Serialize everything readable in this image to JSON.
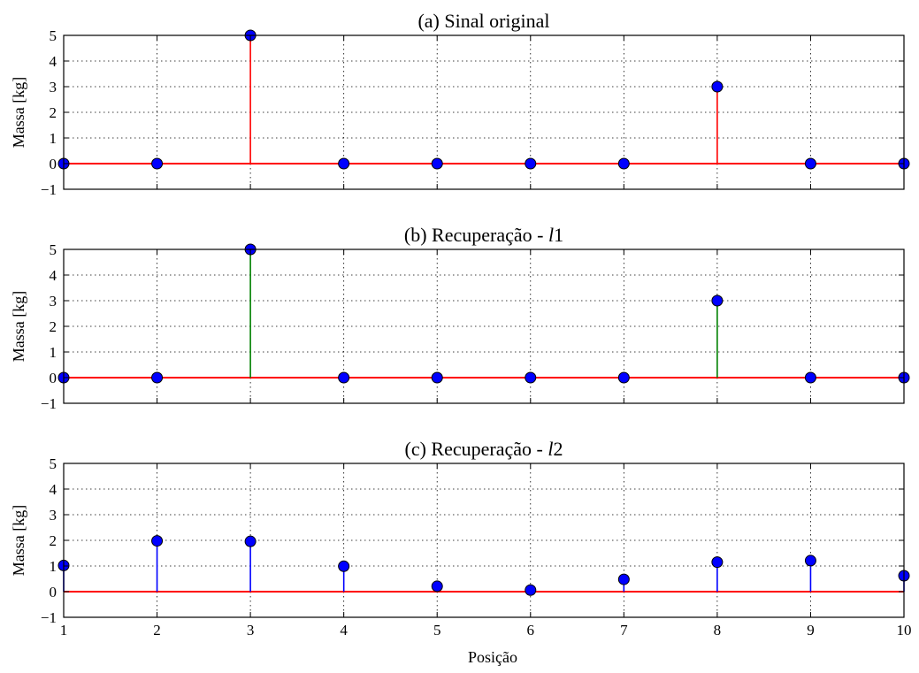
{
  "figure": {
    "xlabel": "Posição"
  },
  "chart_data": [
    {
      "type": "stem",
      "title": "(a) Sinal original",
      "xlabel": "",
      "ylabel": "Massa [kg]",
      "xlim": [
        1,
        10
      ],
      "ylim": [
        -1,
        5
      ],
      "xticks": [
        1,
        2,
        3,
        4,
        5,
        6,
        7,
        8,
        9,
        10
      ],
      "yticks": [
        -1,
        0,
        1,
        2,
        3,
        4,
        5
      ],
      "show_x_tick_labels": false,
      "grid": true,
      "stem_color": "#ff0000",
      "baseline_color": "#ff0000",
      "marker_color": "#0000ff",
      "x": [
        1,
        2,
        3,
        4,
        5,
        6,
        7,
        8,
        9,
        10
      ],
      "values": [
        0,
        0,
        5,
        0,
        0,
        0,
        0,
        3,
        0,
        0
      ]
    },
    {
      "type": "stem",
      "title": "(b) Recuperação - ",
      "title_math": "l",
      "title_suffix": "1",
      "xlabel": "",
      "ylabel": "Massa [kg]",
      "xlim": [
        1,
        10
      ],
      "ylim": [
        -1,
        5
      ],
      "xticks": [
        1,
        2,
        3,
        4,
        5,
        6,
        7,
        8,
        9,
        10
      ],
      "yticks": [
        -1,
        0,
        1,
        2,
        3,
        4,
        5
      ],
      "show_x_tick_labels": false,
      "grid": true,
      "stem_color": "#008000",
      "baseline_color": "#ff0000",
      "marker_color": "#0000ff",
      "x": [
        1,
        2,
        3,
        4,
        5,
        6,
        7,
        8,
        9,
        10
      ],
      "values": [
        0,
        0,
        5,
        0,
        0,
        0,
        0,
        3,
        0,
        0
      ]
    },
    {
      "type": "stem",
      "title": "(c) Recuperação - ",
      "title_math": "l",
      "title_suffix": "2",
      "xlabel": "Posição",
      "ylabel": "Massa [kg]",
      "xlim": [
        1,
        10
      ],
      "ylim": [
        -1,
        5
      ],
      "xticks": [
        1,
        2,
        3,
        4,
        5,
        6,
        7,
        8,
        9,
        10
      ],
      "yticks": [
        -1,
        0,
        1,
        2,
        3,
        4,
        5
      ],
      "show_x_tick_labels": true,
      "grid": true,
      "stem_color": "#0000ff",
      "baseline_color": "#ff0000",
      "marker_color": "#0000ff",
      "x": [
        1,
        2,
        3,
        4,
        5,
        6,
        7,
        8,
        9,
        10
      ],
      "values": [
        1.02,
        1.98,
        1.96,
        0.99,
        0.21,
        0.06,
        0.48,
        1.15,
        1.21,
        0.62
      ]
    }
  ]
}
